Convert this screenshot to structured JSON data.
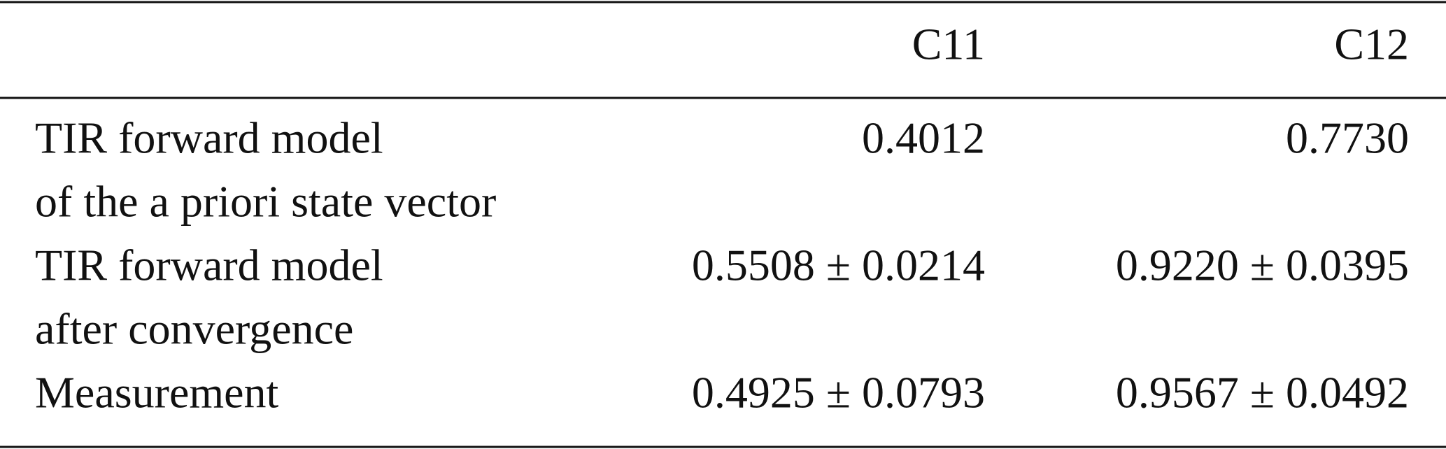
{
  "table": {
    "header": [
      "C11",
      "C12"
    ],
    "rows": [
      {
        "label": [
          "TIR forward model",
          "of the a priori state vector"
        ],
        "cells": [
          "0.4012",
          "0.7730"
        ]
      },
      {
        "label": [
          "TIR forward model",
          "after convergence"
        ],
        "cells": [
          "0.5508 ± 0.0214",
          "0.9220 ± 0.0395"
        ]
      },
      {
        "label": [
          "Measurement"
        ],
        "cells": [
          "0.4925 ± 0.0793",
          "0.9567 ± 0.0492"
        ]
      }
    ]
  }
}
